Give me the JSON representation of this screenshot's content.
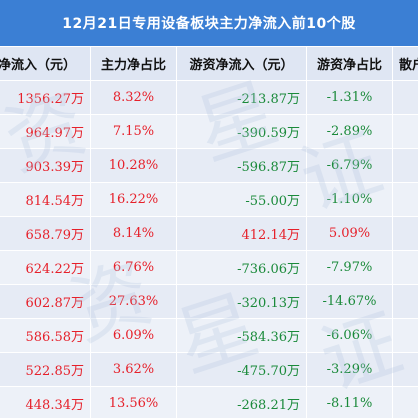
{
  "title": "12月21日专用设备板块主力净流入前10个股",
  "headers": {
    "main_inflow": "净流入（元）",
    "main_ratio": "主力净占比",
    "retail_inflow": "游资净流入（元）",
    "retail_ratio": "游资净占比",
    "small_inflow": "散户净"
  },
  "rows": [
    {
      "main_inflow": "1356.27万",
      "main_ratio": "8.32%",
      "retail_inflow": "-213.87万",
      "retail_ratio": "-1.31%"
    },
    {
      "main_inflow": "964.97万",
      "main_ratio": "7.15%",
      "retail_inflow": "-390.59万",
      "retail_ratio": "-2.89%"
    },
    {
      "main_inflow": "903.39万",
      "main_ratio": "10.28%",
      "retail_inflow": "-596.87万",
      "retail_ratio": "-6.79%"
    },
    {
      "main_inflow": "814.54万",
      "main_ratio": "16.22%",
      "retail_inflow": "-55.00万",
      "retail_ratio": "-1.10%"
    },
    {
      "main_inflow": "658.79万",
      "main_ratio": "8.14%",
      "retail_inflow": "412.14万",
      "retail_ratio": "5.09%"
    },
    {
      "main_inflow": "624.22万",
      "main_ratio": "6.76%",
      "retail_inflow": "-736.06万",
      "retail_ratio": "-7.97%"
    },
    {
      "main_inflow": "602.87万",
      "main_ratio": "27.63%",
      "retail_inflow": "-320.13万",
      "retail_ratio": "-14.67%"
    },
    {
      "main_inflow": "586.58万",
      "main_ratio": "6.09%",
      "retail_inflow": "-584.36万",
      "retail_ratio": "-6.06%"
    },
    {
      "main_inflow": "522.85万",
      "main_ratio": "3.62%",
      "retail_inflow": "-475.70万",
      "retail_ratio": "-3.29%"
    },
    {
      "main_inflow": "448.34万",
      "main_ratio": "13.56%",
      "retail_inflow": "-268.21万",
      "retail_ratio": "-8.11%"
    }
  ],
  "colors": {
    "header_bar": "#3b7fd4",
    "positive": "#e6202a",
    "negative": "#1a8a3a"
  }
}
